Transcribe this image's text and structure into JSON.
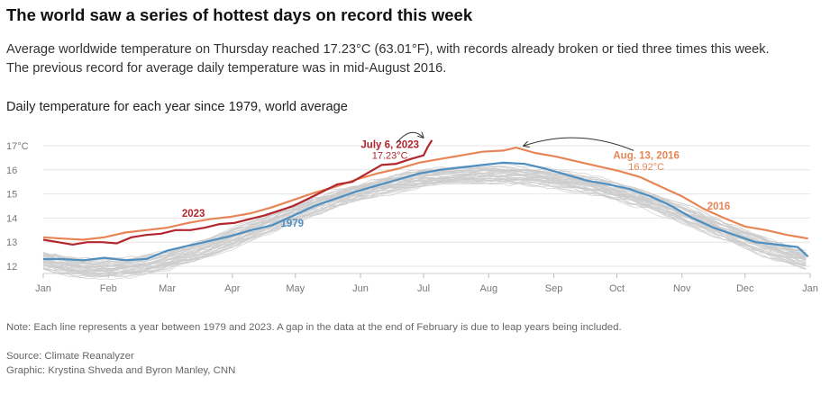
{
  "header": {
    "title": "The world saw a series of hottest days on record this week",
    "subtitle_line1": "Average worldwide temperature on Thursday reached 17.23°C (63.01°F), with records already broken or tied three times this week.",
    "subtitle_line2": "The previous record for average daily temperature was in mid-August 2016."
  },
  "chart_title": "Daily temperature for each year since 1979, world average",
  "footer": {
    "note": "Note: Each line represents a year between 1979 and 2023. A gap in the data at the end of February is due to leap years being included.",
    "source": "Source: Climate Reanalyzer",
    "credit": "Graphic: Krystina Shveda and Byron Manley, CNN"
  },
  "chart_data": {
    "type": "line",
    "title": "Daily temperature for each year since 1979, world average",
    "xlabel": "",
    "ylabel": "",
    "x_ticks": [
      "Jan",
      "Feb",
      "Mar",
      "Apr",
      "May",
      "Jun",
      "Jul",
      "Aug",
      "Sep",
      "Oct",
      "Nov",
      "Dec",
      "Jan"
    ],
    "y_ticks": [
      "17°C",
      "16",
      "15",
      "14",
      "13",
      "12"
    ],
    "ylim": [
      12,
      17
    ],
    "grid": true,
    "x_unit": "day of year",
    "series": [
      {
        "name": "2023",
        "color": "#b2262d",
        "points": [
          [
            1,
            13.1
          ],
          [
            8,
            13.0
          ],
          [
            15,
            12.9
          ],
          [
            22,
            13.0
          ],
          [
            29,
            13.0
          ],
          [
            36,
            12.95
          ],
          [
            43,
            13.2
          ],
          [
            50,
            13.3
          ],
          [
            57,
            13.35
          ],
          [
            64,
            13.5
          ],
          [
            71,
            13.5
          ],
          [
            78,
            13.6
          ],
          [
            85,
            13.75
          ],
          [
            92,
            13.8
          ],
          [
            99,
            13.95
          ],
          [
            106,
            14.1
          ],
          [
            113,
            14.3
          ],
          [
            120,
            14.5
          ],
          [
            127,
            14.8
          ],
          [
            134,
            15.1
          ],
          [
            141,
            15.4
          ],
          [
            148,
            15.5
          ],
          [
            155,
            15.85
          ],
          [
            162,
            16.2
          ],
          [
            169,
            16.25
          ],
          [
            176,
            16.45
          ],
          [
            182,
            16.6
          ],
          [
            184,
            16.95
          ],
          [
            186,
            17.23
          ]
        ]
      },
      {
        "name": "2016",
        "color": "#e88557",
        "points": [
          [
            1,
            13.2
          ],
          [
            10,
            13.15
          ],
          [
            20,
            13.1
          ],
          [
            30,
            13.2
          ],
          [
            40,
            13.4
          ],
          [
            50,
            13.5
          ],
          [
            60,
            13.6
          ],
          [
            70,
            13.8
          ],
          [
            80,
            13.95
          ],
          [
            90,
            14.05
          ],
          [
            100,
            14.2
          ],
          [
            110,
            14.45
          ],
          [
            120,
            14.75
          ],
          [
            130,
            15.05
          ],
          [
            140,
            15.3
          ],
          [
            150,
            15.6
          ],
          [
            160,
            15.85
          ],
          [
            170,
            16.05
          ],
          [
            180,
            16.3
          ],
          [
            190,
            16.45
          ],
          [
            200,
            16.6
          ],
          [
            210,
            16.75
          ],
          [
            220,
            16.8
          ],
          [
            226,
            16.92
          ],
          [
            235,
            16.7
          ],
          [
            245,
            16.55
          ],
          [
            255,
            16.35
          ],
          [
            265,
            16.15
          ],
          [
            275,
            15.95
          ],
          [
            285,
            15.7
          ],
          [
            295,
            15.3
          ],
          [
            305,
            14.9
          ],
          [
            315,
            14.4
          ],
          [
            325,
            14.0
          ],
          [
            335,
            13.65
          ],
          [
            345,
            13.5
          ],
          [
            355,
            13.3
          ],
          [
            365,
            13.15
          ]
        ]
      },
      {
        "name": "1979",
        "color": "#4f8fc0",
        "points": [
          [
            1,
            12.3
          ],
          [
            10,
            12.3
          ],
          [
            20,
            12.25
          ],
          [
            30,
            12.35
          ],
          [
            40,
            12.25
          ],
          [
            50,
            12.3
          ],
          [
            60,
            12.65
          ],
          [
            70,
            12.85
          ],
          [
            80,
            13.05
          ],
          [
            90,
            13.25
          ],
          [
            100,
            13.5
          ],
          [
            110,
            13.7
          ],
          [
            120,
            14.1
          ],
          [
            130,
            14.5
          ],
          [
            140,
            14.8
          ],
          [
            150,
            15.1
          ],
          [
            160,
            15.35
          ],
          [
            170,
            15.6
          ],
          [
            180,
            15.85
          ],
          [
            190,
            16.0
          ],
          [
            200,
            16.1
          ],
          [
            210,
            16.2
          ],
          [
            220,
            16.3
          ],
          [
            230,
            16.25
          ],
          [
            240,
            16.05
          ],
          [
            250,
            15.8
          ],
          [
            260,
            15.55
          ],
          [
            270,
            15.4
          ],
          [
            280,
            15.2
          ],
          [
            290,
            14.9
          ],
          [
            300,
            14.5
          ],
          [
            310,
            14.0
          ],
          [
            320,
            13.6
          ],
          [
            330,
            13.3
          ],
          [
            340,
            13.0
          ],
          [
            350,
            12.9
          ],
          [
            360,
            12.8
          ],
          [
            365,
            12.4
          ]
        ]
      }
    ],
    "annotations": [
      {
        "label": "July 6, 2023",
        "value_label": "17.23°C",
        "color": "#b2262d"
      },
      {
        "label": "Aug. 13, 2016",
        "value_label": "16.92°C",
        "color": "#e88557"
      }
    ]
  }
}
